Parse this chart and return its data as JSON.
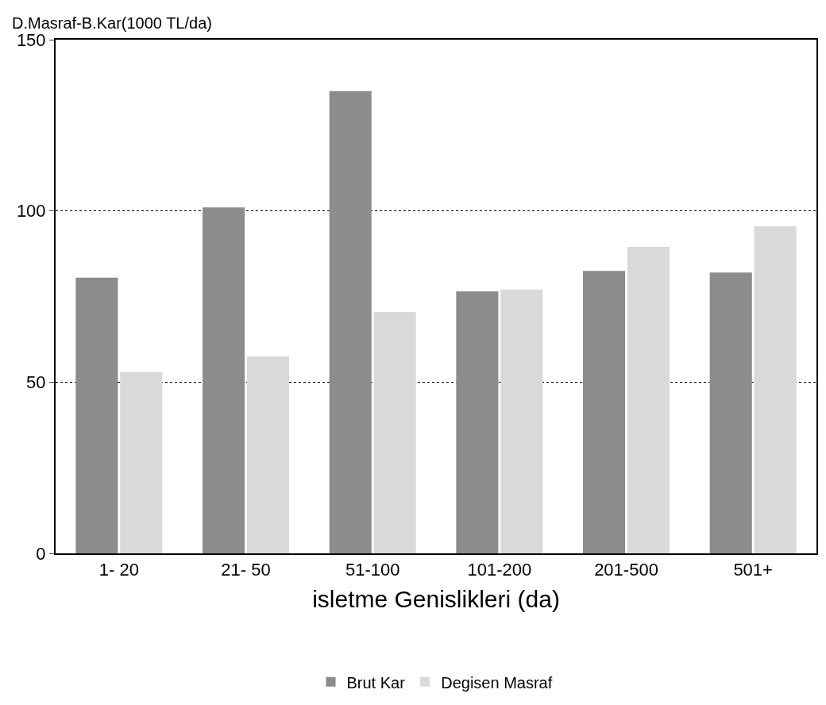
{
  "chart_data": {
    "type": "bar",
    "ylabel": "D.Masraf-B.Kar(1000 TL/da)",
    "xlabel": "isletme Genislikleri (da)",
    "categories": [
      "1- 20",
      "21- 50",
      "51-100",
      "101-200",
      "201-500",
      "501+"
    ],
    "series": [
      {
        "name": "Brut Kar",
        "color": "#8c8c8c",
        "values": [
          80.5,
          101,
          135,
          76.5,
          82.5,
          82
        ]
      },
      {
        "name": "Degisen Masraf",
        "color": "#d9d9d9",
        "values": [
          53,
          57.5,
          70.5,
          77,
          89.5,
          95.5
        ]
      }
    ],
    "ylim": [
      0,
      150
    ],
    "yticks": [
      0,
      50,
      100,
      150
    ],
    "grid": "y",
    "line_style": "dotted",
    "legend": "bottom"
  }
}
